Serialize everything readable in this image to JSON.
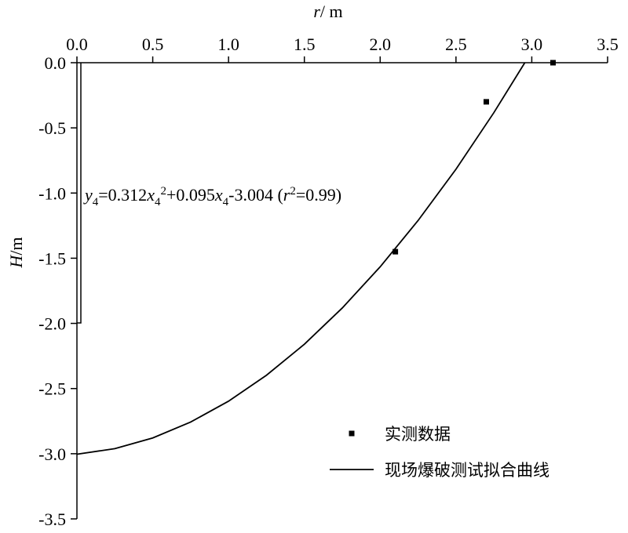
{
  "chart_data": {
    "type": "line",
    "xlabel": [
      "r",
      "/ m"
    ],
    "ylabel": [
      "H",
      "/m"
    ],
    "annotation": [
      "y",
      "4",
      "=0.312",
      "x",
      "4",
      "2",
      "+0.095",
      "x",
      "4",
      "-3.004 (",
      "r",
      "2",
      "=0.99)"
    ],
    "xlim": [
      0,
      3.5
    ],
    "xticks": [
      {
        "value": 0,
        "label": "0.0"
      },
      0.5,
      {
        "value": 1,
        "label": "1.0"
      },
      1.5,
      {
        "value": 2,
        "label": "2.0"
      },
      2.5,
      {
        "value": 3,
        "label": "3.0"
      },
      3.5
    ],
    "ylim": [
      -3.5,
      0
    ],
    "yticks": [
      {
        "value": 0,
        "label": "0.0"
      },
      -0.5,
      {
        "value": -1,
        "label": "-1.0"
      },
      -1.5,
      {
        "value": -2,
        "label": "-2.0"
      },
      -2.5,
      {
        "value": -3,
        "label": "-3.0"
      },
      -3.5
    ],
    "legend": "lower right",
    "series": [
      {
        "name": "实测数据",
        "type": "scatter",
        "color": "#000000",
        "x": [
          2.1,
          2.7,
          3.14
        ],
        "values": [
          -1.45,
          -0.3,
          0.0
        ]
      },
      {
        "name": "现场爆破测试拟合曲线",
        "type": "line",
        "color": "#000000",
        "x": [
          0,
          0.25,
          0.5,
          0.75,
          1.0,
          1.25,
          1.5,
          1.75,
          2.0,
          2.25,
          2.5,
          2.75,
          2.954
        ],
        "values": [
          -3.004,
          -2.961,
          -2.879,
          -2.757,
          -2.597,
          -2.398,
          -2.16,
          -1.882,
          -1.566,
          -1.211,
          -0.817,
          -0.383,
          0.0
        ]
      }
    ]
  }
}
